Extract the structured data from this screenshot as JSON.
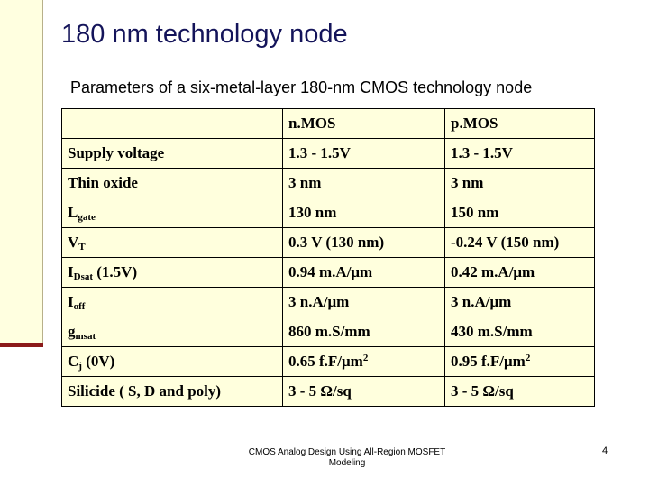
{
  "title": "180 nm technology node",
  "subtitle": "Parameters of a six-metal-layer 180-nm CMOS technology node",
  "table": {
    "header": [
      "n.MOS",
      "p.MOS"
    ],
    "rows": [
      [
        {
          "text": "Supply voltage"
        },
        {
          "text": "1.3 - 1.5V"
        },
        {
          "text": "1.3 - 1.5V"
        }
      ],
      [
        {
          "text": "Thin oxide"
        },
        {
          "text": "3 nm"
        },
        {
          "text": "3 nm"
        }
      ],
      [
        {
          "text": "L",
          "sub": "gate"
        },
        {
          "text": "130 nm"
        },
        {
          "text": "150 nm"
        }
      ],
      [
        {
          "text": "V",
          "sub": "T"
        },
        {
          "text": "0.3 V (130 nm)"
        },
        {
          "text": "-0.24 V (150 nm)"
        }
      ],
      [
        {
          "text": "I",
          "sub": "Dsat",
          "after": " (1.5V)"
        },
        {
          "text": "0.94 m.A/μm"
        },
        {
          "text": "0.42 m.A/μm"
        }
      ],
      [
        {
          "text": "I",
          "sub": "off"
        },
        {
          "text": "3 n.A/μm"
        },
        {
          "text": "3 n.A/μm"
        }
      ],
      [
        {
          "text": "g",
          "sub": "msat"
        },
        {
          "text": "860 m.S/mm"
        },
        {
          "text": "430 m.S/mm"
        }
      ],
      [
        {
          "text": "C",
          "sub": "j",
          "after": " (0V)"
        },
        {
          "text": "0.65 f.F/μm",
          "sup": "2"
        },
        {
          "text": "0.95 f.F/μm",
          "sup": "2"
        }
      ],
      [
        {
          "text": "Silicide ( S, D and poly)"
        },
        {
          "text": "3 - 5 Ω/sq"
        },
        {
          "text": "3 - 5 Ω/sq"
        }
      ]
    ]
  },
  "footer": "CMOS Analog Design Using All-Region MOSFET Modeling",
  "page_number": "4"
}
